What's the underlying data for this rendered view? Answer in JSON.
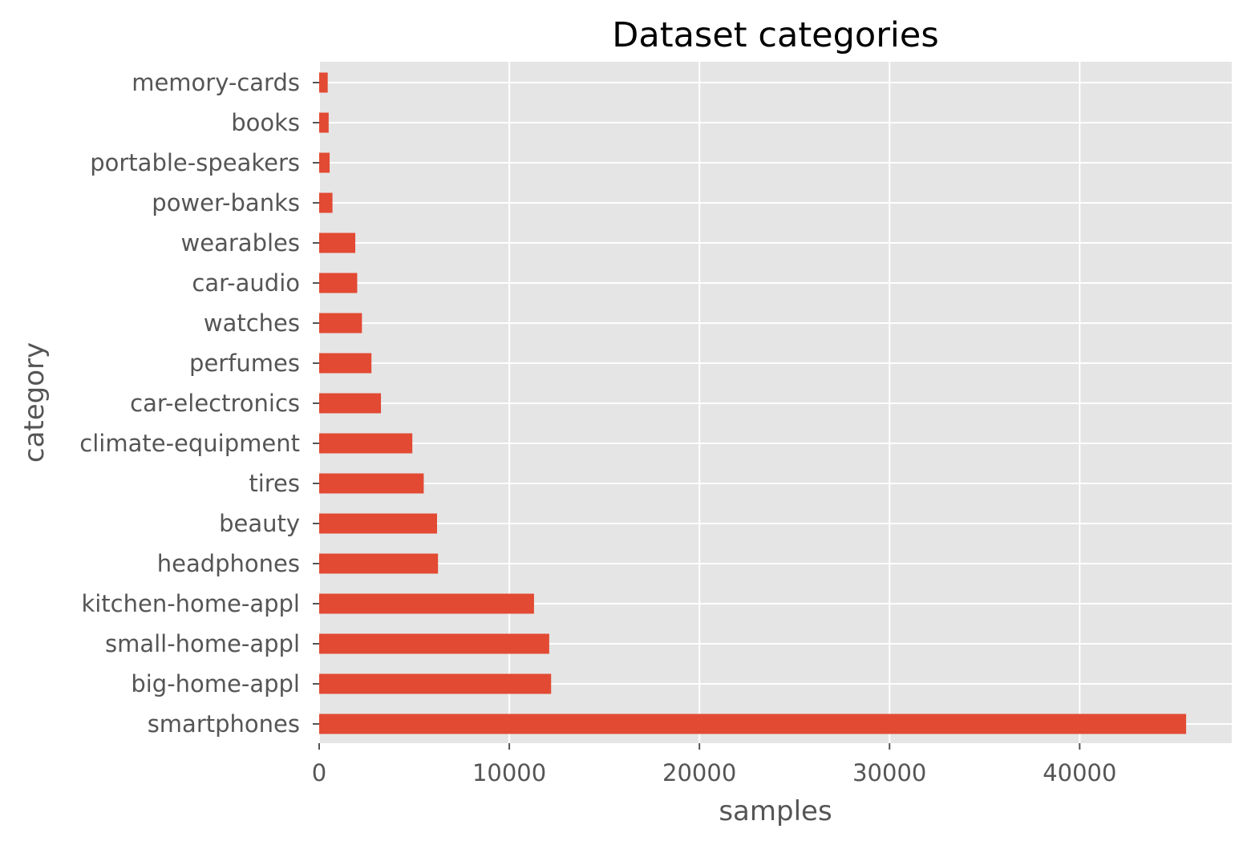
{
  "chart_data": {
    "type": "bar",
    "orientation": "horizontal",
    "title": "Dataset categories",
    "xlabel": "samples",
    "ylabel": "category",
    "categories": [
      "smartphones",
      "big-home-appl",
      "small-home-appl",
      "kitchen-home-appl",
      "headphones",
      "beauty",
      "tires",
      "climate-equipment",
      "car-electronics",
      "perfumes",
      "watches",
      "car-audio",
      "wearables",
      "power-banks",
      "portable-speakers",
      "books",
      "memory-cards"
    ],
    "values": [
      45600,
      12200,
      12100,
      11300,
      6250,
      6200,
      5500,
      4900,
      3250,
      2750,
      2250,
      2000,
      1900,
      700,
      550,
      500,
      450
    ],
    "xlim": [
      0,
      48000
    ],
    "xticks": [
      0,
      10000,
      20000,
      30000,
      40000
    ],
    "xtick_labels": [
      "0",
      "10000",
      "20000",
      "30000",
      "40000"
    ],
    "grid": true,
    "colors": {
      "bar": "#E24A33",
      "plot_background": "#E5E5E5",
      "grid": "#FFFFFF",
      "text": "#555555",
      "title": "#000000"
    }
  }
}
